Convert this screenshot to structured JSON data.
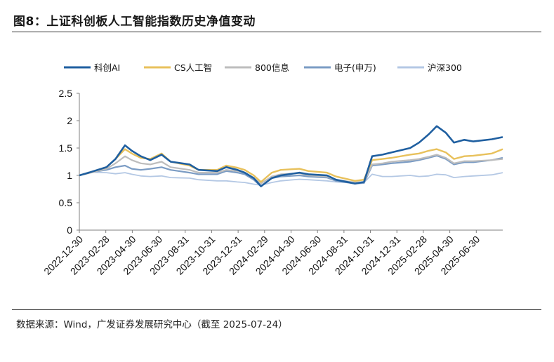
{
  "header": {
    "title": "图8：上证科创板人工智能指数历史净值变动"
  },
  "footer": {
    "source": "数据来源：Wind，广发证券发展研究中心（截至 2025-07-24）"
  },
  "chart_data": {
    "type": "line",
    "title": "",
    "xlabel": "",
    "ylabel": "",
    "ylim": [
      0,
      2.5
    ],
    "yticks": [
      "0",
      "0.5",
      "1",
      "1.5",
      "2",
      "2.5"
    ],
    "x_tick_labels": [
      "2022-12-30",
      "2023-02-28",
      "2023-04-30",
      "2023-06-30",
      "2023-08-31",
      "2023-10-31",
      "2023-12-31",
      "2024-02-29",
      "2024-04-30",
      "2024-06-30",
      "2024-08-31",
      "2024-10-31",
      "2024-12-31",
      "2025-02-28",
      "2025-04-30",
      "2025-06-30"
    ],
    "x_range": [
      "2022-12-30",
      "2025-07-24"
    ],
    "grid": false,
    "legend_position": "top",
    "series": [
      {
        "name": "科创AI",
        "color": "#1f5fa0",
        "x": [
          "2022-12-30",
          "2023-01-20",
          "2023-02-28",
          "2023-03-20",
          "2023-04-10",
          "2023-04-25",
          "2023-05-15",
          "2023-06-05",
          "2023-06-30",
          "2023-07-20",
          "2023-08-31",
          "2023-09-20",
          "2023-10-31",
          "2023-11-20",
          "2023-12-15",
          "2023-12-31",
          "2024-01-20",
          "2024-02-05",
          "2024-02-29",
          "2024-03-20",
          "2024-04-30",
          "2024-05-20",
          "2024-06-30",
          "2024-07-20",
          "2024-08-31",
          "2024-09-20",
          "2024-10-08",
          "2024-10-31",
          "2024-11-20",
          "2024-12-31",
          "2025-01-20",
          "2025-02-10",
          "2025-02-28",
          "2025-03-20",
          "2025-04-07",
          "2025-04-30",
          "2025-05-20",
          "2025-06-30",
          "2025-07-24"
        ],
        "values": [
          1.0,
          1.05,
          1.15,
          1.3,
          1.55,
          1.45,
          1.35,
          1.28,
          1.38,
          1.25,
          1.2,
          1.1,
          1.08,
          1.15,
          1.1,
          1.05,
          0.95,
          0.8,
          0.95,
          1.0,
          1.05,
          1.02,
          1.0,
          0.92,
          0.85,
          0.88,
          1.35,
          1.38,
          1.42,
          1.5,
          1.6,
          1.75,
          1.9,
          1.78,
          1.6,
          1.65,
          1.62,
          1.66,
          1.7
        ]
      },
      {
        "name": "CS人工智",
        "color": "#e8c15c",
        "x": [
          "2022-12-30",
          "2023-01-20",
          "2023-02-28",
          "2023-03-20",
          "2023-04-10",
          "2023-04-25",
          "2023-05-15",
          "2023-06-05",
          "2023-06-30",
          "2023-07-20",
          "2023-08-31",
          "2023-09-20",
          "2023-10-31",
          "2023-11-20",
          "2023-12-15",
          "2023-12-31",
          "2024-01-20",
          "2024-02-05",
          "2024-02-29",
          "2024-03-20",
          "2024-04-30",
          "2024-05-20",
          "2024-06-30",
          "2024-07-20",
          "2024-08-31",
          "2024-09-20",
          "2024-10-08",
          "2024-10-31",
          "2024-11-20",
          "2024-12-31",
          "2025-01-20",
          "2025-02-10",
          "2025-02-28",
          "2025-03-20",
          "2025-04-07",
          "2025-04-30",
          "2025-05-20",
          "2025-06-30",
          "2025-07-24"
        ],
        "values": [
          1.0,
          1.05,
          1.15,
          1.3,
          1.48,
          1.4,
          1.32,
          1.3,
          1.4,
          1.25,
          1.18,
          1.1,
          1.1,
          1.18,
          1.14,
          1.1,
          1.0,
          0.88,
          1.05,
          1.1,
          1.12,
          1.08,
          1.05,
          0.98,
          0.9,
          0.92,
          1.28,
          1.3,
          1.32,
          1.38,
          1.4,
          1.45,
          1.48,
          1.42,
          1.3,
          1.35,
          1.36,
          1.4,
          1.48
        ]
      },
      {
        "name": "800信息",
        "color": "#bdbdbd",
        "x": [
          "2022-12-30",
          "2023-01-20",
          "2023-02-28",
          "2023-03-20",
          "2023-04-10",
          "2023-04-25",
          "2023-05-15",
          "2023-06-05",
          "2023-06-30",
          "2023-07-20",
          "2023-08-31",
          "2023-09-20",
          "2023-10-31",
          "2023-11-20",
          "2023-12-15",
          "2023-12-31",
          "2024-01-20",
          "2024-02-05",
          "2024-02-29",
          "2024-03-20",
          "2024-04-30",
          "2024-05-20",
          "2024-06-30",
          "2024-07-20",
          "2024-08-31",
          "2024-09-20",
          "2024-10-08",
          "2024-10-31",
          "2024-11-20",
          "2024-12-31",
          "2025-01-20",
          "2025-02-10",
          "2025-02-28",
          "2025-03-20",
          "2025-04-07",
          "2025-04-30",
          "2025-05-20",
          "2025-06-30",
          "2025-07-24"
        ],
        "values": [
          1.0,
          1.04,
          1.12,
          1.22,
          1.35,
          1.28,
          1.22,
          1.2,
          1.25,
          1.15,
          1.1,
          1.05,
          1.05,
          1.1,
          1.08,
          1.05,
          0.95,
          0.85,
          0.98,
          1.02,
          1.04,
          1.0,
          0.98,
          0.92,
          0.87,
          0.88,
          1.2,
          1.22,
          1.25,
          1.28,
          1.3,
          1.34,
          1.38,
          1.32,
          1.22,
          1.26,
          1.26,
          1.28,
          1.3
        ]
      },
      {
        "name": "电子(申万)",
        "color": "#7b9cc4",
        "x": [
          "2022-12-30",
          "2023-01-20",
          "2023-02-28",
          "2023-03-20",
          "2023-04-10",
          "2023-04-25",
          "2023-05-15",
          "2023-06-05",
          "2023-06-30",
          "2023-07-20",
          "2023-08-31",
          "2023-09-20",
          "2023-10-31",
          "2023-11-20",
          "2023-12-15",
          "2023-12-31",
          "2024-01-20",
          "2024-02-05",
          "2024-02-29",
          "2024-03-20",
          "2024-04-30",
          "2024-05-20",
          "2024-06-30",
          "2024-07-20",
          "2024-08-31",
          "2024-09-20",
          "2024-10-08",
          "2024-10-31",
          "2024-11-20",
          "2024-12-31",
          "2025-01-20",
          "2025-02-10",
          "2025-02-28",
          "2025-03-20",
          "2025-04-07",
          "2025-04-30",
          "2025-05-20",
          "2025-06-30",
          "2025-07-24"
        ],
        "values": [
          1.0,
          1.05,
          1.1,
          1.15,
          1.18,
          1.12,
          1.1,
          1.12,
          1.15,
          1.1,
          1.05,
          1.02,
          1.02,
          1.08,
          1.05,
          1.02,
          0.92,
          0.8,
          0.95,
          0.98,
          1.0,
          0.98,
          0.96,
          0.9,
          0.85,
          0.86,
          1.18,
          1.2,
          1.22,
          1.25,
          1.28,
          1.32,
          1.36,
          1.3,
          1.2,
          1.24,
          1.24,
          1.28,
          1.32
        ]
      },
      {
        "name": "沪深300",
        "color": "#b4c8e4",
        "x": [
          "2022-12-30",
          "2023-01-20",
          "2023-02-28",
          "2023-03-20",
          "2023-04-10",
          "2023-04-25",
          "2023-05-15",
          "2023-06-05",
          "2023-06-30",
          "2023-07-20",
          "2023-08-31",
          "2023-09-20",
          "2023-10-31",
          "2023-11-20",
          "2023-12-15",
          "2023-12-31",
          "2024-01-20",
          "2024-02-05",
          "2024-02-29",
          "2024-03-20",
          "2024-04-30",
          "2024-05-20",
          "2024-06-30",
          "2024-07-20",
          "2024-08-31",
          "2024-09-20",
          "2024-10-08",
          "2024-10-31",
          "2024-11-20",
          "2024-12-31",
          "2025-01-20",
          "2025-02-10",
          "2025-02-28",
          "2025-03-20",
          "2025-04-07",
          "2025-04-30",
          "2025-05-20",
          "2025-06-30",
          "2025-07-24"
        ],
        "values": [
          1.0,
          1.06,
          1.05,
          1.03,
          1.05,
          1.02,
          0.99,
          0.98,
          0.99,
          0.96,
          0.95,
          0.92,
          0.9,
          0.9,
          0.88,
          0.87,
          0.84,
          0.82,
          0.87,
          0.9,
          0.93,
          0.92,
          0.9,
          0.88,
          0.86,
          0.87,
          1.02,
          0.98,
          0.98,
          1.0,
          0.98,
          0.99,
          1.02,
          1.01,
          0.96,
          0.98,
          0.99,
          1.01,
          1.05
        ]
      }
    ]
  }
}
